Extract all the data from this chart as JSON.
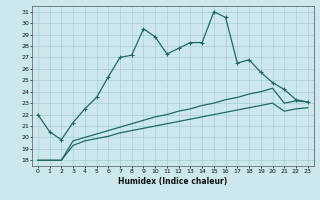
{
  "xlabel": "Humidex (Indice chaleur)",
  "bg_color": "#cce8ec",
  "grid_color": "#a8cdd4",
  "line_color": "#1e6b5e",
  "xlim": [
    -0.5,
    23.5
  ],
  "ylim": [
    17.5,
    31.5
  ],
  "xticks": [
    0,
    1,
    2,
    3,
    4,
    5,
    6,
    7,
    8,
    9,
    10,
    11,
    12,
    13,
    14,
    15,
    16,
    17,
    18,
    19,
    20,
    21,
    22,
    23
  ],
  "yticks": [
    18,
    19,
    20,
    21,
    22,
    23,
    24,
    25,
    26,
    27,
    28,
    29,
    30,
    31
  ],
  "series1_x": [
    0,
    1,
    2,
    3,
    4,
    5,
    6,
    7,
    8,
    9,
    10,
    11,
    12,
    13,
    14,
    15,
    16,
    17,
    18,
    19,
    20,
    21,
    22,
    23
  ],
  "series1_y": [
    22.0,
    20.5,
    19.8,
    21.3,
    22.5,
    23.5,
    25.3,
    27.0,
    27.2,
    29.5,
    28.8,
    27.3,
    27.8,
    28.3,
    28.3,
    31.0,
    30.5,
    26.5,
    26.8,
    25.7,
    24.8,
    24.2,
    23.3,
    23.1
  ],
  "series2_x": [
    0,
    1,
    2,
    3,
    4,
    5,
    6,
    7,
    8,
    9,
    10,
    11,
    12,
    13,
    14,
    15,
    16,
    17,
    18,
    19,
    20,
    21,
    22,
    23
  ],
  "series2_y": [
    18.0,
    18.0,
    18.0,
    19.7,
    20.0,
    20.3,
    20.6,
    20.9,
    21.2,
    21.5,
    21.8,
    22.0,
    22.3,
    22.5,
    22.8,
    23.0,
    23.3,
    23.5,
    23.8,
    24.0,
    24.3,
    23.0,
    23.2,
    23.1
  ],
  "series3_x": [
    0,
    1,
    2,
    3,
    4,
    5,
    6,
    7,
    8,
    9,
    10,
    11,
    12,
    13,
    14,
    15,
    16,
    17,
    18,
    19,
    20,
    21,
    22,
    23
  ],
  "series3_y": [
    18.0,
    18.0,
    18.0,
    19.3,
    19.7,
    19.9,
    20.1,
    20.4,
    20.6,
    20.8,
    21.0,
    21.2,
    21.4,
    21.6,
    21.8,
    22.0,
    22.2,
    22.4,
    22.6,
    22.8,
    23.0,
    22.3,
    22.5,
    22.6
  ]
}
